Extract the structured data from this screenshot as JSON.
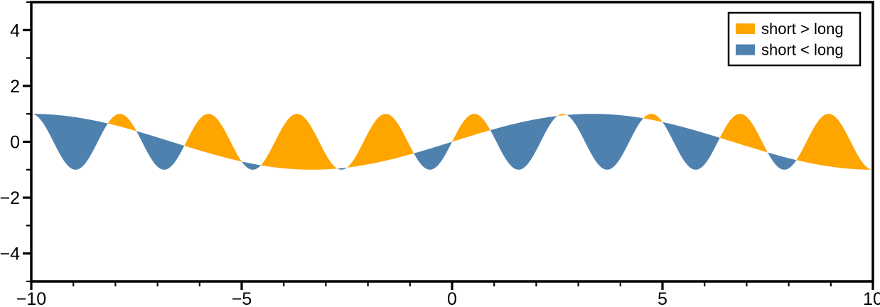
{
  "chart_data": {
    "type": "area",
    "title": "",
    "xlabel": "",
    "ylabel": "",
    "axes": {
      "xlim": [
        -10,
        10
      ],
      "ylim": [
        -5,
        5
      ],
      "x_major_ticks": [
        -10,
        -5,
        0,
        5,
        10
      ],
      "x_major_tick_labels": [
        "−10",
        "−5",
        "0",
        "5",
        "10"
      ],
      "x_minor_ticks": [
        -9,
        -8,
        -7,
        -6,
        -4,
        -3,
        -2,
        -1,
        1,
        2,
        3,
        4,
        6,
        7,
        8,
        9
      ],
      "y_major_ticks": [
        -4,
        -2,
        0,
        2,
        4
      ],
      "y_major_tick_labels": [
        "−4",
        "−2",
        "0",
        "2",
        "4"
      ],
      "y_minor_ticks": [
        -5,
        -3,
        -1,
        1,
        3,
        5
      ],
      "grid": false,
      "spine_color": "#000000",
      "tick_color": "#000000"
    },
    "series": [
      {
        "name": "short",
        "fn": "sin",
        "amplitude": 1,
        "omega": 2.98451302,
        "period": 2.105,
        "description": "short-period sine wave, sin(19*pi*x/20)"
      },
      {
        "name": "long",
        "fn": "sin",
        "amplitude": 1,
        "omega": 0.4712389,
        "period": 13.333,
        "description": "long-period sine wave, sin(3*pi*x/20)"
      }
    ],
    "fills": [
      {
        "label": "short > long",
        "condition": "short>long",
        "color": "#FFA500"
      },
      {
        "label": "short < long",
        "condition": "short<long",
        "color": "#4E81AE"
      }
    ],
    "legend": {
      "position": "upper right",
      "frame_color": "#000000",
      "background": "#ffffff",
      "entries": [
        {
          "label": "short > long",
          "color": "#FFA500"
        },
        {
          "label": "short < long",
          "color": "#4E81AE"
        }
      ]
    }
  }
}
